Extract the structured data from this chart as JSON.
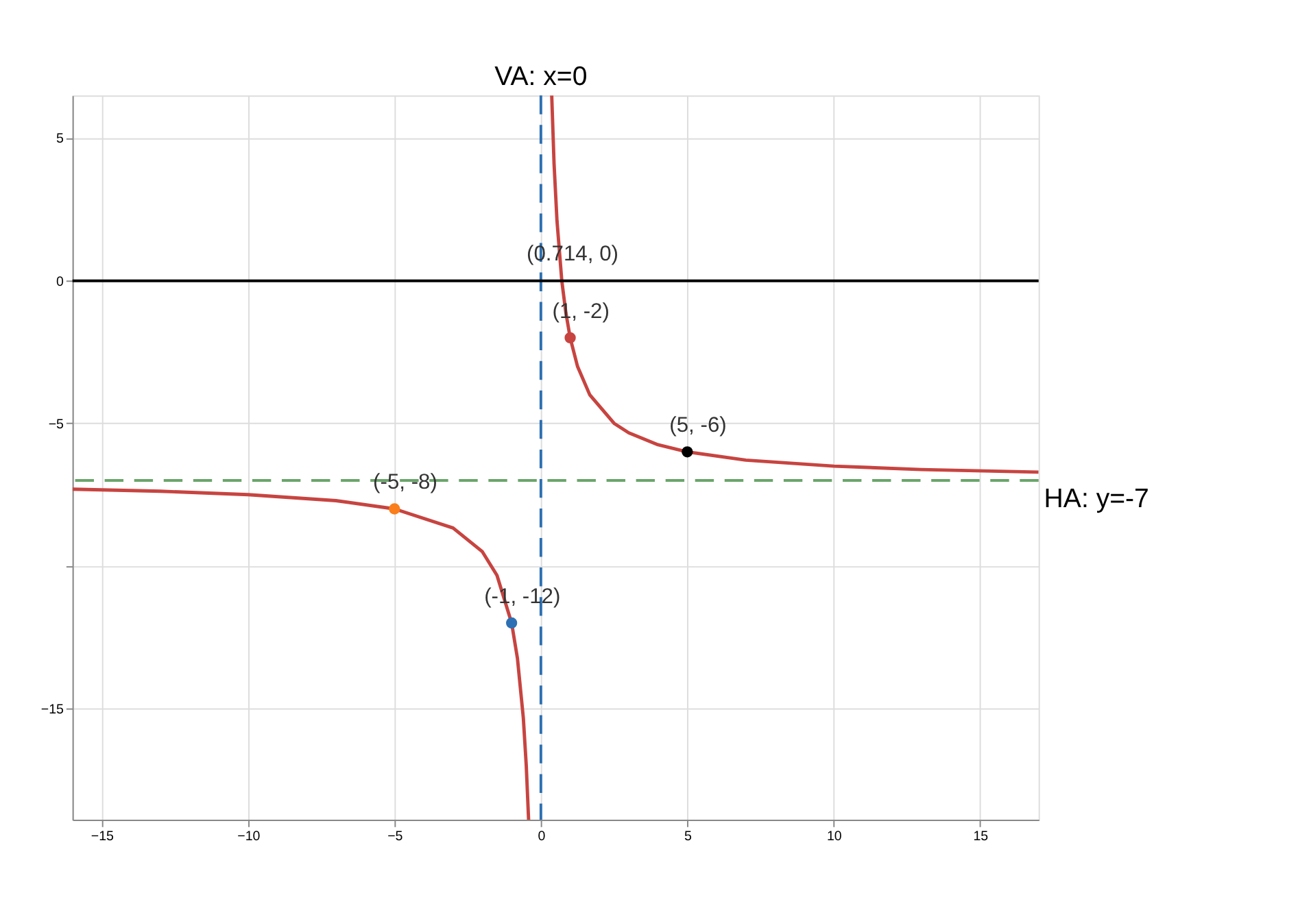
{
  "chart_data": {
    "type": "line",
    "xlim": [
      -16,
      17
    ],
    "ylim": [
      -18.9,
      6.5
    ],
    "xticks": [
      -15,
      -10,
      -5,
      0,
      5,
      10,
      15
    ],
    "yticks": [
      5,
      0,
      -5,
      {
        "value": -10,
        "label": null
      },
      -15
    ],
    "grid": true,
    "legend": false,
    "series": [
      {
        "color": "#c74440",
        "x": [
          0.37,
          0.45,
          0.55,
          0.714,
          0.85,
          1,
          1.25,
          1.67,
          2.5,
          3,
          4,
          5,
          7,
          10,
          13,
          17
        ],
        "values": [
          6.5,
          4.1,
          2.1,
          0,
          -1.1,
          -2,
          -3,
          -4,
          -5,
          -5.33,
          -5.75,
          -6,
          -6.29,
          -6.5,
          -6.62,
          -6.71
        ]
      },
      {
        "color": "#c74440",
        "x": [
          -16,
          -13,
          -10,
          -7,
          -5,
          -3,
          -2,
          -1.5,
          -1,
          -0.8,
          -0.6,
          -0.5,
          -0.42
        ],
        "values": [
          -7.31,
          -7.38,
          -7.5,
          -7.71,
          -8,
          -8.67,
          -9.5,
          -10.33,
          -12,
          -13.25,
          -15.33,
          -17,
          -18.9
        ]
      },
      {
        "type": "scatter",
        "x": [
          1,
          5,
          -5,
          -1
        ],
        "values": [
          -2,
          -6,
          -8,
          -12
        ],
        "colors": [
          "#c74440",
          "#000000",
          "#fa7e19",
          "#2d70b3"
        ]
      }
    ],
    "ref_lines": [
      {
        "axis": "x",
        "value": 0,
        "label": "VA: x=0",
        "color": "#2d70b3",
        "line_style": "dashed"
      },
      {
        "axis": "y",
        "value": -7,
        "label": "HA: y=-7",
        "color": "#6aa56a",
        "line_style": "dashed"
      },
      {
        "axis": "y",
        "value": 0,
        "label": null,
        "color": "#000000",
        "line_style": "solid"
      }
    ],
    "annotations": [
      {
        "text": "(0.714, 0)",
        "x": 0.714,
        "y": 0
      },
      {
        "text": "(1, -2)",
        "x": 1,
        "y": -2
      },
      {
        "text": "(5, -6)",
        "x": 5,
        "y": -6
      },
      {
        "text": "(-5, -8)",
        "x": -5,
        "y": -8
      },
      {
        "text": "(-1, -12)",
        "x": -1,
        "y": -12
      }
    ]
  }
}
